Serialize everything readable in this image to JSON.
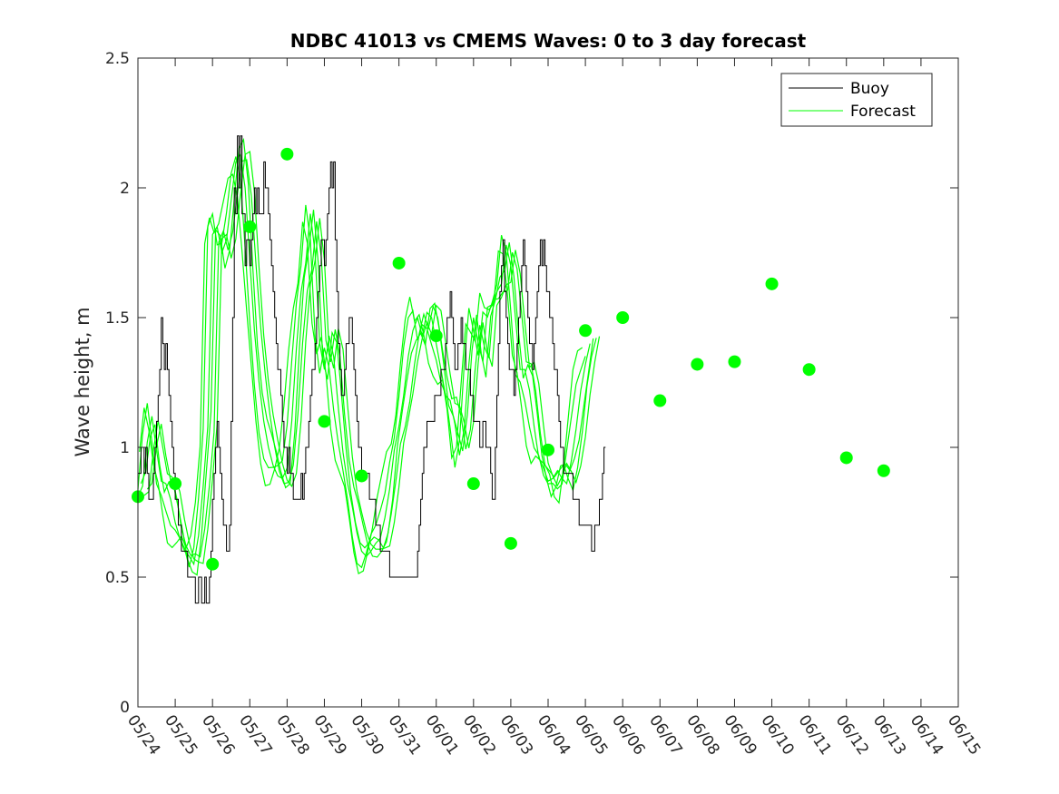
{
  "chart_data": {
    "type": "line",
    "title": "NDBC 41013 vs CMEMS Waves: 0 to 3 day forecast",
    "xlabel": "",
    "ylabel": "Wave height, m",
    "ylim": [
      0,
      2.5
    ],
    "yticks": [
      "0",
      "0.5",
      "1",
      "1.5",
      "2",
      "2.5"
    ],
    "xlim": [
      "05/24",
      "06/15"
    ],
    "xticks": [
      "05/24",
      "05/25",
      "05/26",
      "05/27",
      "05/28",
      "05/29",
      "05/30",
      "05/31",
      "06/01",
      "06/02",
      "06/03",
      "06/04",
      "06/05",
      "06/06",
      "06/07",
      "06/08",
      "06/09",
      "06/10",
      "06/11",
      "06/12",
      "06/13",
      "06/14",
      "06/15"
    ],
    "legend": {
      "position": "top-right",
      "entries": [
        "Buoy",
        "Forecast"
      ]
    },
    "colors": {
      "buoy": "#000000",
      "forecast": "#00ff00"
    },
    "series": [
      {
        "name": "Buoy",
        "step_hours": 1,
        "values": [
          0.9,
          0.9,
          1.0,
          1.0,
          0.9,
          1.0,
          0.9,
          0.8,
          0.8,
          0.8,
          0.9,
          1.0,
          1.1,
          1.2,
          1.3,
          1.5,
          1.4,
          1.3,
          1.4,
          1.3,
          1.2,
          1.1,
          1.0,
          0.9,
          0.8,
          0.8,
          0.7,
          0.7,
          0.6,
          0.6,
          0.6,
          0.6,
          0.5,
          0.5,
          0.5,
          0.5,
          0.5,
          0.4,
          0.4,
          0.5,
          0.5,
          0.4,
          0.4,
          0.5,
          0.4,
          0.4,
          0.5,
          0.6,
          0.8,
          0.9,
          1.0,
          1.1,
          1.0,
          0.9,
          0.8,
          0.7,
          0.7,
          0.6,
          0.6,
          0.7,
          1.1,
          1.5,
          2.0,
          1.9,
          2.2,
          2.0,
          2.2,
          1.9,
          1.9,
          1.7,
          1.8,
          1.8,
          1.7,
          1.8,
          1.9,
          2.0,
          1.9,
          2.0,
          1.9,
          1.9,
          1.9,
          2.1,
          2.0,
          2.0,
          1.9,
          1.8,
          1.7,
          1.6,
          1.5,
          1.4,
          1.3,
          1.3,
          1.2,
          1.1,
          1.0,
          1.0,
          0.9,
          1.0,
          0.9,
          0.9,
          0.8,
          0.8,
          0.8,
          0.8,
          0.8,
          0.9,
          0.8,
          0.9,
          1.0,
          1.0,
          1.1,
          1.2,
          1.3,
          1.3,
          1.4,
          1.5,
          1.6,
          1.7,
          1.8,
          1.8,
          1.7,
          1.8,
          1.9,
          2.0,
          2.1,
          2.0,
          2.1,
          1.8,
          1.6,
          1.4,
          1.3,
          1.2,
          1.2,
          1.3,
          1.4,
          1.4,
          1.5,
          1.5,
          1.4,
          1.3,
          1.2,
          1.1,
          1.0,
          1.0,
          0.9,
          0.9,
          0.9,
          0.9,
          0.9,
          0.8,
          0.8,
          0.8,
          0.8,
          0.7,
          0.7,
          0.7,
          0.6,
          0.6,
          0.6,
          0.6,
          0.6,
          0.6,
          0.5,
          0.5,
          0.5,
          0.5,
          0.5,
          0.5,
          0.5,
          0.5,
          0.5,
          0.5,
          0.5,
          0.5,
          0.5,
          0.5,
          0.5,
          0.5,
          0.5,
          0.5,
          0.6,
          0.7,
          0.8,
          0.9,
          1.0,
          1.0,
          1.1,
          1.1,
          1.1,
          1.1,
          1.1,
          1.2,
          1.2,
          1.2,
          1.2,
          1.3,
          1.3,
          1.3,
          1.4,
          1.5,
          1.5,
          1.6,
          1.5,
          1.4,
          1.3,
          1.3,
          1.4,
          1.4,
          1.5,
          1.4,
          1.4,
          1.3,
          1.3,
          1.3,
          1.2,
          1.2,
          1.1,
          1.1,
          1.1,
          1.1,
          1.0,
          1.0,
          1.1,
          1.1,
          1.0,
          1.0,
          1.0,
          0.9,
          0.8,
          0.8,
          1.0,
          1.2,
          1.4,
          1.6,
          1.7,
          1.8,
          1.6,
          1.5,
          1.4,
          1.3,
          1.3,
          1.3,
          1.2,
          1.3,
          1.4,
          1.5,
          1.6,
          1.7,
          1.8,
          1.7,
          1.6,
          1.5,
          1.4,
          1.4,
          1.3,
          1.4,
          1.5,
          1.6,
          1.7,
          1.8,
          1.7,
          1.8,
          1.7,
          1.6,
          1.6,
          1.5,
          1.5,
          1.4,
          1.3,
          1.3,
          1.2,
          1.1,
          1.0,
          1.0,
          0.9,
          0.9,
          0.9,
          0.9,
          0.9,
          0.9,
          0.8,
          0.8,
          0.8,
          0.8,
          0.7,
          0.7,
          0.7,
          0.7,
          0.7,
          0.7,
          0.7,
          0.7,
          0.6,
          0.6,
          0.7,
          0.7,
          0.7,
          0.8,
          0.8,
          0.9,
          1.0
        ]
      },
      {
        "name": "Forecast",
        "step_hours": 3,
        "values": [
          0.81,
          0.85,
          1.02,
          1.12,
          0.99,
          0.87,
          0.86,
          0.8,
          0.71,
          0.65,
          0.6,
          0.58,
          0.55,
          0.66,
          0.85,
          1.08,
          1.82,
          1.85,
          1.75,
          1.8,
          1.95,
          2.1,
          2.13,
          2.0,
          1.72,
          1.45,
          1.25,
          1.1,
          1.0,
          0.93,
          0.89,
          0.88,
          0.92,
          1.1,
          1.38,
          1.6,
          1.71,
          1.9,
          1.75,
          1.4,
          1.3,
          1.43,
          1.35,
          1.15,
          0.98,
          0.86,
          0.77,
          0.67,
          0.6,
          0.58,
          0.6,
          0.63,
          0.65,
          0.73,
          0.84,
          0.99,
          1.08,
          1.2,
          1.35,
          1.45,
          1.5,
          1.43,
          1.52,
          1.5,
          1.4,
          1.3,
          1.2,
          1.18,
          1.09,
          0.97,
          1.07,
          1.32,
          1.5,
          1.4,
          1.33,
          1.54,
          1.55,
          1.6,
          1.63,
          1.78,
          1.7,
          1.5,
          1.3,
          1.3,
          1.22,
          1.08,
          0.96,
          0.92,
          0.87,
          0.88,
          0.91,
          0.88,
          0.86,
          0.95,
          1.07,
          1.22,
          1.32,
          1.4
        ]
      }
    ],
    "forecast_markers": {
      "x": [
        "05/24",
        "05/25",
        "05/26",
        "05/27",
        "05/28",
        "05/29",
        "05/30",
        "05/31",
        "06/01",
        "06/02",
        "06/03",
        "06/04",
        "06/05",
        "06/06",
        "06/07",
        "06/08",
        "06/09",
        "06/10",
        "06/11",
        "06/12",
        "06/13"
      ],
      "y": [
        0.81,
        0.86,
        0.55,
        1.85,
        2.13,
        1.1,
        0.89,
        1.71,
        1.43,
        0.86,
        0.63,
        0.99,
        1.45,
        1.5,
        1.18,
        1.32,
        1.33,
        1.63,
        1.3,
        0.96,
        0.91
      ]
    }
  }
}
